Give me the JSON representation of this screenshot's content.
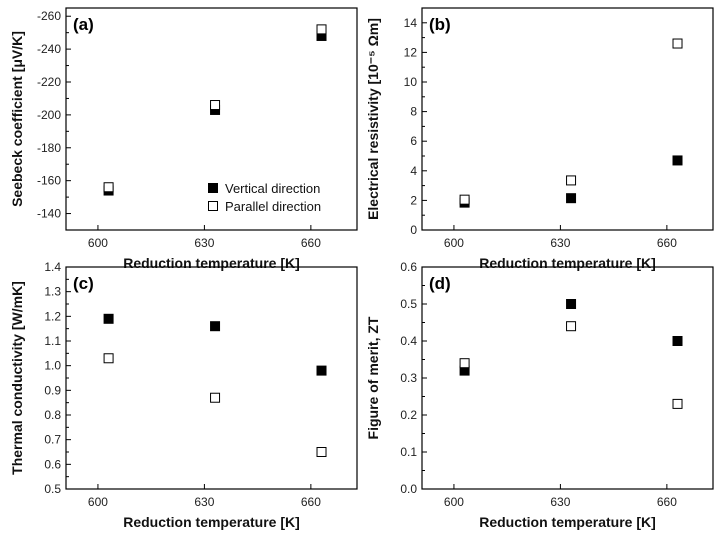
{
  "chart_data": [
    {
      "type": "scatter",
      "panel": "(a)",
      "xlabel": "Reduction temperature [K]",
      "ylabel": "Seebeck coefficient [μV/K]",
      "xlim": [
        591,
        673
      ],
      "ylim": [
        -130,
        -265
      ],
      "y_reversed": true,
      "xticks": [
        600,
        630,
        660
      ],
      "yticks": [
        -140,
        -160,
        -180,
        -200,
        -220,
        -240,
        -260
      ],
      "series": [
        {
          "name": "Vertical direction",
          "marker": "filled-square",
          "x": [
            603,
            633,
            663
          ],
          "y": [
            -154,
            -203,
            -248
          ]
        },
        {
          "name": "Parallel direction",
          "marker": "open-square",
          "x": [
            603,
            633,
            663
          ],
          "y": [
            -156,
            -206,
            -252
          ]
        }
      ],
      "legend": {
        "placement": "bottom-right"
      }
    },
    {
      "type": "scatter",
      "panel": "(b)",
      "xlabel": "Reduction temperature [K]",
      "ylabel": "Electrical resistivity [10⁻⁵ Ωm]",
      "xlim": [
        591,
        673
      ],
      "ylim": [
        0,
        15
      ],
      "xticks": [
        600,
        630,
        660
      ],
      "yticks": [
        0,
        2,
        4,
        6,
        8,
        10,
        12,
        14
      ],
      "series": [
        {
          "marker": "filled-square",
          "x": [
            603,
            633,
            663
          ],
          "y": [
            1.85,
            2.15,
            4.7
          ]
        },
        {
          "marker": "open-square",
          "x": [
            603,
            633,
            663
          ],
          "y": [
            2.05,
            3.35,
            12.6
          ]
        }
      ]
    },
    {
      "type": "scatter",
      "panel": "(c)",
      "xlabel": "Reduction temperature [K]",
      "ylabel": "Thermal conductivity [W/mK]",
      "xlim": [
        591,
        673
      ],
      "ylim": [
        0.5,
        1.4
      ],
      "xticks": [
        600,
        630,
        660
      ],
      "yticks": [
        0.5,
        0.6,
        0.7,
        0.8,
        0.9,
        1.0,
        1.1,
        1.2,
        1.3,
        1.4
      ],
      "series": [
        {
          "marker": "filled-square",
          "x": [
            603,
            633,
            663
          ],
          "y": [
            1.19,
            1.16,
            0.98
          ]
        },
        {
          "marker": "open-square",
          "x": [
            603,
            633,
            663
          ],
          "y": [
            1.03,
            0.87,
            0.65
          ]
        }
      ]
    },
    {
      "type": "scatter",
      "panel": "(d)",
      "xlabel": "Reduction temperature [K]",
      "ylabel": "Figure of merit, ZT",
      "xlim": [
        591,
        673
      ],
      "ylim": [
        0,
        0.6
      ],
      "xticks": [
        600,
        630,
        660
      ],
      "yticks": [
        0.0,
        0.1,
        0.2,
        0.3,
        0.4,
        0.5,
        0.6
      ],
      "series": [
        {
          "marker": "filled-square",
          "x": [
            603,
            633,
            663
          ],
          "y": [
            0.32,
            0.5,
            0.4
          ]
        },
        {
          "marker": "open-square",
          "x": [
            603,
            633,
            663
          ],
          "y": [
            0.34,
            0.44,
            0.23
          ]
        }
      ]
    }
  ]
}
